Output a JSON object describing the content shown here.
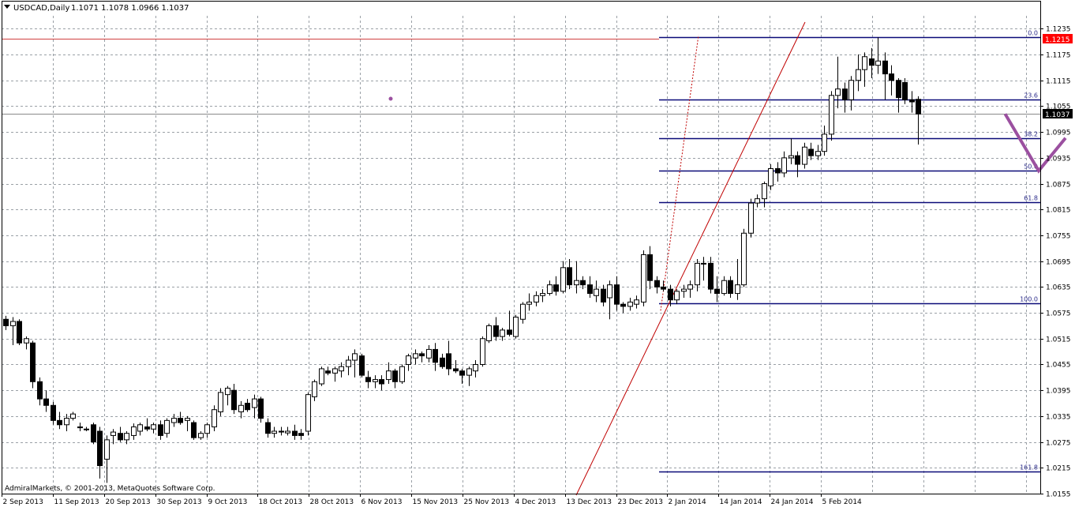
{
  "header": {
    "symbol": "USDCAD,Daily",
    "ohlc": "1.1071 1.1078 1.0966 1.1037"
  },
  "copyright": "AdmiralMarkets, © 2001-2013, MetaQuotes Software Corp.",
  "colors": {
    "background": "#ffffff",
    "axis": "#000000",
    "grid": "#9aa0a6",
    "fib_lines": "#0a0a78",
    "fib_labels": "#2b2b8a",
    "red_line": "#c00000",
    "horizontal_price_line": "#d04040",
    "price_label_red": "#ff0000",
    "price_label_current": "#000000",
    "projection": "#9b50a0",
    "bull_candle": "#ffffff",
    "bear_candle": "#000000"
  },
  "chart_data": {
    "type": "candlestick",
    "title": "USDCAD,Daily",
    "ylim": [
      1.0155,
      1.1265
    ],
    "y_ticks": [
      "1.1235",
      "1.1175",
      "1.1115",
      "1.1055",
      "1.0995",
      "1.0935",
      "1.0875",
      "1.0815",
      "1.0755",
      "1.0695",
      "1.0635",
      "1.0575",
      "1.0515",
      "1.0455",
      "1.0395",
      "1.0335",
      "1.0275",
      "1.0215",
      "1.0155"
    ],
    "x_ticks": [
      "2 Sep 2013",
      "11 Sep 2013",
      "20 Sep 2013",
      "30 Sep 2013",
      "9 Oct 2013",
      "18 Oct 2013",
      "28 Oct 2013",
      "6 Nov 2013",
      "15 Nov 2013",
      "25 Nov 2013",
      "4 Dec 2013",
      "13 Dec 2013",
      "23 Dec 2013",
      "2 Jan 2014",
      "14 Jan 2014",
      "24 Jan 2014",
      "5 Feb 2014"
    ],
    "grid": true,
    "price_labels": [
      {
        "label": "1.1215",
        "value": 1.1215,
        "style": "red"
      },
      {
        "label": "1.1037",
        "value": 1.1037,
        "style": "current"
      }
    ],
    "fibonacci_levels": [
      {
        "label": "0.0",
        "value": 1.1215
      },
      {
        "label": "23.6",
        "value": 1.1071
      },
      {
        "label": "38.2",
        "value": 1.0981
      },
      {
        "label": "50.0",
        "value": 1.0905
      },
      {
        "label": "61.8",
        "value": 1.0832
      },
      {
        "label": "100.0",
        "value": 1.0597
      },
      {
        "label": "161.8",
        "value": 1.0207
      }
    ],
    "candles": [
      {
        "o": 1.056,
        "h": 1.0568,
        "l": 1.0535,
        "c": 1.0545
      },
      {
        "o": 1.0545,
        "h": 1.0565,
        "l": 1.05,
        "c": 1.0555
      },
      {
        "o": 1.0555,
        "h": 1.056,
        "l": 1.05,
        "c": 1.0505
      },
      {
        "o": 1.0505,
        "h": 1.052,
        "l": 1.049,
        "c": 1.0515
      },
      {
        "o": 1.0505,
        "h": 1.051,
        "l": 1.04,
        "c": 1.0415
      },
      {
        "o": 1.0415,
        "h": 1.0425,
        "l": 1.036,
        "c": 1.0375
      },
      {
        "o": 1.0375,
        "h": 1.0395,
        "l": 1.0345,
        "c": 1.036
      },
      {
        "o": 1.036,
        "h": 1.0368,
        "l": 1.0315,
        "c": 1.0325
      },
      {
        "o": 1.0325,
        "h": 1.0345,
        "l": 1.0305,
        "c": 1.0315
      },
      {
        "o": 1.0315,
        "h": 1.034,
        "l": 1.03,
        "c": 1.033
      },
      {
        "o": 1.033,
        "h": 1.0345,
        "l": 1.0325,
        "c": 1.034
      },
      {
        "o": 1.031,
        "h": 1.032,
        "l": 1.03,
        "c": 1.0308
      },
      {
        "o": 1.0305,
        "h": 1.031,
        "l": 1.03,
        "c": 1.0305
      },
      {
        "o": 1.0315,
        "h": 1.032,
        "l": 1.027,
        "c": 1.0275
      },
      {
        "o": 1.03,
        "h": 1.031,
        "l": 1.019,
        "c": 1.022
      },
      {
        "o": 1.0235,
        "h": 1.029,
        "l": 1.018,
        "c": 1.028
      },
      {
        "o": 1.029,
        "h": 1.0305,
        "l": 1.027,
        "c": 1.0298
      },
      {
        "o": 1.0295,
        "h": 1.031,
        "l": 1.0275,
        "c": 1.028
      },
      {
        "o": 1.028,
        "h": 1.03,
        "l": 1.027,
        "c": 1.0295
      },
      {
        "o": 1.029,
        "h": 1.0318,
        "l": 1.028,
        "c": 1.031
      },
      {
        "o": 1.03,
        "h": 1.032,
        "l": 1.029,
        "c": 1.0315
      },
      {
        "o": 1.031,
        "h": 1.033,
        "l": 1.03,
        "c": 1.0305
      },
      {
        "o": 1.0305,
        "h": 1.032,
        "l": 1.0295,
        "c": 1.0315
      },
      {
        "o": 1.0315,
        "h": 1.0325,
        "l": 1.028,
        "c": 1.029
      },
      {
        "o": 1.0295,
        "h": 1.033,
        "l": 1.0285,
        "c": 1.0325
      },
      {
        "o": 1.032,
        "h": 1.034,
        "l": 1.031,
        "c": 1.033
      },
      {
        "o": 1.033,
        "h": 1.0345,
        "l": 1.0315,
        "c": 1.032
      },
      {
        "o": 1.0325,
        "h": 1.0335,
        "l": 1.03,
        "c": 1.033
      },
      {
        "o": 1.032,
        "h": 1.0325,
        "l": 1.028,
        "c": 1.0285
      },
      {
        "o": 1.0285,
        "h": 1.03,
        "l": 1.028,
        "c": 1.0295
      },
      {
        "o": 1.0295,
        "h": 1.032,
        "l": 1.0285,
        "c": 1.0315
      },
      {
        "o": 1.031,
        "h": 1.036,
        "l": 1.03,
        "c": 1.035
      },
      {
        "o": 1.0345,
        "h": 1.04,
        "l": 1.0335,
        "c": 1.039
      },
      {
        "o": 1.0385,
        "h": 1.0405,
        "l": 1.036,
        "c": 1.04
      },
      {
        "o": 1.0395,
        "h": 1.041,
        "l": 1.034,
        "c": 1.035
      },
      {
        "o": 1.0345,
        "h": 1.037,
        "l": 1.033,
        "c": 1.036
      },
      {
        "o": 1.0365,
        "h": 1.0375,
        "l": 1.0345,
        "c": 1.035
      },
      {
        "o": 1.0355,
        "h": 1.0385,
        "l": 1.033,
        "c": 1.0375
      },
      {
        "o": 1.0375,
        "h": 1.038,
        "l": 1.032,
        "c": 1.033
      },
      {
        "o": 1.032,
        "h": 1.033,
        "l": 1.0285,
        "c": 1.0295
      },
      {
        "o": 1.0295,
        "h": 1.031,
        "l": 1.0285,
        "c": 1.03
      },
      {
        "o": 1.03,
        "h": 1.031,
        "l": 1.029,
        "c": 1.0298
      },
      {
        "o": 1.0296,
        "h": 1.031,
        "l": 1.029,
        "c": 1.03
      },
      {
        "o": 1.03,
        "h": 1.0315,
        "l": 1.028,
        "c": 1.029
      },
      {
        "o": 1.0295,
        "h": 1.0305,
        "l": 1.028,
        "c": 1.029
      },
      {
        "o": 1.03,
        "h": 1.039,
        "l": 1.029,
        "c": 1.0385
      },
      {
        "o": 1.038,
        "h": 1.042,
        "l": 1.037,
        "c": 1.0415
      },
      {
        "o": 1.041,
        "h": 1.045,
        "l": 1.0405,
        "c": 1.0445
      },
      {
        "o": 1.044,
        "h": 1.045,
        "l": 1.043,
        "c": 1.0435
      },
      {
        "o": 1.0435,
        "h": 1.045,
        "l": 1.0415,
        "c": 1.0445
      },
      {
        "o": 1.044,
        "h": 1.046,
        "l": 1.0425,
        "c": 1.045
      },
      {
        "o": 1.045,
        "h": 1.0475,
        "l": 1.043,
        "c": 1.0465
      },
      {
        "o": 1.0465,
        "h": 1.049,
        "l": 1.0425,
        "c": 1.048
      },
      {
        "o": 1.0475,
        "h": 1.048,
        "l": 1.0425,
        "c": 1.043
      },
      {
        "o": 1.0425,
        "h": 1.044,
        "l": 1.04,
        "c": 1.0415
      },
      {
        "o": 1.0415,
        "h": 1.043,
        "l": 1.04,
        "c": 1.042
      },
      {
        "o": 1.042,
        "h": 1.043,
        "l": 1.0395,
        "c": 1.041
      },
      {
        "o": 1.042,
        "h": 1.046,
        "l": 1.041,
        "c": 1.044
      },
      {
        "o": 1.044,
        "h": 1.0445,
        "l": 1.04,
        "c": 1.0415
      },
      {
        "o": 1.0415,
        "h": 1.0455,
        "l": 1.041,
        "c": 1.045
      },
      {
        "o": 1.0455,
        "h": 1.048,
        "l": 1.044,
        "c": 1.0475
      },
      {
        "o": 1.047,
        "h": 1.049,
        "l": 1.0455,
        "c": 1.048
      },
      {
        "o": 1.048,
        "h": 1.0485,
        "l": 1.046,
        "c": 1.0475
      },
      {
        "o": 1.047,
        "h": 1.05,
        "l": 1.046,
        "c": 1.049
      },
      {
        "o": 1.049,
        "h": 1.0505,
        "l": 1.044,
        "c": 1.046
      },
      {
        "o": 1.047,
        "h": 1.048,
        "l": 1.0445,
        "c": 1.045
      },
      {
        "o": 1.048,
        "h": 1.051,
        "l": 1.043,
        "c": 1.0445
      },
      {
        "o": 1.0445,
        "h": 1.0465,
        "l": 1.0435,
        "c": 1.044
      },
      {
        "o": 1.044,
        "h": 1.0445,
        "l": 1.041,
        "c": 1.043
      },
      {
        "o": 1.043,
        "h": 1.045,
        "l": 1.0405,
        "c": 1.0445
      },
      {
        "o": 1.044,
        "h": 1.0465,
        "l": 1.0425,
        "c": 1.0455
      },
      {
        "o": 1.0455,
        "h": 1.052,
        "l": 1.045,
        "c": 1.0515
      },
      {
        "o": 1.051,
        "h": 1.055,
        "l": 1.0505,
        "c": 1.0545
      },
      {
        "o": 1.0545,
        "h": 1.0565,
        "l": 1.051,
        "c": 1.052
      },
      {
        "o": 1.052,
        "h": 1.054,
        "l": 1.051,
        "c": 1.0535
      },
      {
        "o": 1.0535,
        "h": 1.058,
        "l": 1.052,
        "c": 1.0525
      },
      {
        "o": 1.052,
        "h": 1.057,
        "l": 1.0515,
        "c": 1.0565
      },
      {
        "o": 1.056,
        "h": 1.06,
        "l": 1.055,
        "c": 1.0595
      },
      {
        "o": 1.0595,
        "h": 1.062,
        "l": 1.058,
        "c": 1.06
      },
      {
        "o": 1.06,
        "h": 1.0625,
        "l": 1.059,
        "c": 1.0615
      },
      {
        "o": 1.0615,
        "h": 1.063,
        "l": 1.06,
        "c": 1.062
      },
      {
        "o": 1.062,
        "h": 1.065,
        "l": 1.0615,
        "c": 1.064
      },
      {
        "o": 1.064,
        "h": 1.066,
        "l": 1.0615,
        "c": 1.0625
      },
      {
        "o": 1.0625,
        "h": 1.0695,
        "l": 1.062,
        "c": 1.068
      },
      {
        "o": 1.068,
        "h": 1.07,
        "l": 1.063,
        "c": 1.064
      },
      {
        "o": 1.064,
        "h": 1.0695,
        "l": 1.062,
        "c": 1.065
      },
      {
        "o": 1.065,
        "h": 1.066,
        "l": 1.063,
        "c": 1.064
      },
      {
        "o": 1.064,
        "h": 1.066,
        "l": 1.061,
        "c": 1.062
      },
      {
        "o": 1.0615,
        "h": 1.065,
        "l": 1.06,
        "c": 1.063
      },
      {
        "o": 1.063,
        "h": 1.064,
        "l": 1.059,
        "c": 1.06
      },
      {
        "o": 1.061,
        "h": 1.065,
        "l": 1.056,
        "c": 1.064
      },
      {
        "o": 1.064,
        "h": 1.066,
        "l": 1.058,
        "c": 1.0595
      },
      {
        "o": 1.0595,
        "h": 1.06,
        "l": 1.0575,
        "c": 1.059
      },
      {
        "o": 1.059,
        "h": 1.061,
        "l": 1.058,
        "c": 1.06
      },
      {
        "o": 1.0595,
        "h": 1.0615,
        "l": 1.0585,
        "c": 1.0605
      },
      {
        "o": 1.06,
        "h": 1.072,
        "l": 1.059,
        "c": 1.071
      },
      {
        "o": 1.071,
        "h": 1.073,
        "l": 1.063,
        "c": 1.065
      },
      {
        "o": 1.065,
        "h": 1.066,
        "l": 1.062,
        "c": 1.0635
      },
      {
        "o": 1.0635,
        "h": 1.065,
        "l": 1.0625,
        "c": 1.063
      },
      {
        "o": 1.063,
        "h": 1.064,
        "l": 1.059,
        "c": 1.0605
      },
      {
        "o": 1.0605,
        "h": 1.063,
        "l": 1.0595,
        "c": 1.0625
      },
      {
        "o": 1.0625,
        "h": 1.064,
        "l": 1.061,
        "c": 1.063
      },
      {
        "o": 1.063,
        "h": 1.065,
        "l": 1.061,
        "c": 1.064
      },
      {
        "o": 1.064,
        "h": 1.07,
        "l": 1.0625,
        "c": 1.069
      },
      {
        "o": 1.069,
        "h": 1.0705,
        "l": 1.065,
        "c": 1.069
      },
      {
        "o": 1.069,
        "h": 1.0705,
        "l": 1.062,
        "c": 1.063
      },
      {
        "o": 1.063,
        "h": 1.066,
        "l": 1.06,
        "c": 1.062
      },
      {
        "o": 1.062,
        "h": 1.066,
        "l": 1.0615,
        "c": 1.065
      },
      {
        "o": 1.065,
        "h": 1.066,
        "l": 1.061,
        "c": 1.062
      },
      {
        "o": 1.062,
        "h": 1.07,
        "l": 1.0605,
        "c": 1.064
      },
      {
        "o": 1.064,
        "h": 1.077,
        "l": 1.0635,
        "c": 1.076
      },
      {
        "o": 1.076,
        "h": 1.084,
        "l": 1.075,
        "c": 1.083
      },
      {
        "o": 1.083,
        "h": 1.085,
        "l": 1.082,
        "c": 1.084
      },
      {
        "o": 1.084,
        "h": 1.088,
        "l": 1.082,
        "c": 1.0875
      },
      {
        "o": 1.087,
        "h": 1.092,
        "l": 1.086,
        "c": 1.091
      },
      {
        "o": 1.091,
        "h": 1.0925,
        "l": 1.088,
        "c": 1.09
      },
      {
        "o": 1.09,
        "h": 1.095,
        "l": 1.089,
        "c": 1.0935
      },
      {
        "o": 1.0935,
        "h": 1.098,
        "l": 1.092,
        "c": 1.094
      },
      {
        "o": 1.094,
        "h": 1.095,
        "l": 1.089,
        "c": 1.092
      },
      {
        "o": 1.092,
        "h": 1.097,
        "l": 1.091,
        "c": 1.096
      },
      {
        "o": 1.0955,
        "h": 1.097,
        "l": 1.093,
        "c": 1.094
      },
      {
        "o": 1.094,
        "h": 1.0965,
        "l": 1.093,
        "c": 1.095
      },
      {
        "o": 1.095,
        "h": 1.101,
        "l": 1.094,
        "c": 1.099
      },
      {
        "o": 1.099,
        "h": 1.109,
        "l": 1.0975,
        "c": 1.108
      },
      {
        "o": 1.108,
        "h": 1.117,
        "l": 1.105,
        "c": 1.1095
      },
      {
        "o": 1.1095,
        "h": 1.111,
        "l": 1.104,
        "c": 1.107
      },
      {
        "o": 1.107,
        "h": 1.1125,
        "l": 1.1045,
        "c": 1.1115
      },
      {
        "o": 1.1115,
        "h": 1.1175,
        "l": 1.109,
        "c": 1.114
      },
      {
        "o": 1.114,
        "h": 1.118,
        "l": 1.11,
        "c": 1.117
      },
      {
        "o": 1.1165,
        "h": 1.119,
        "l": 1.112,
        "c": 1.115
      },
      {
        "o": 1.115,
        "h": 1.1215,
        "l": 1.113,
        "c": 1.116
      },
      {
        "o": 1.116,
        "h": 1.118,
        "l": 1.107,
        "c": 1.113
      },
      {
        "o": 1.113,
        "h": 1.115,
        "l": 1.108,
        "c": 1.1115
      },
      {
        "o": 1.1115,
        "h": 1.112,
        "l": 1.104,
        "c": 1.1075
      },
      {
        "o": 1.111,
        "h": 1.112,
        "l": 1.106,
        "c": 1.107
      },
      {
        "o": 1.107,
        "h": 1.109,
        "l": 1.104,
        "c": 1.1065
      },
      {
        "o": 1.1071,
        "h": 1.1078,
        "l": 1.0966,
        "c": 1.1037
      }
    ],
    "drawings": [
      {
        "type": "trendline",
        "from": {
          "bar": 119,
          "price": 1.0585
        },
        "to": {
          "bar": 162,
          "price": 1.124
        },
        "note": "solid red, extended"
      },
      {
        "type": "trendline",
        "from": {
          "bar": 119,
          "price": 1.0595
        },
        "to": {
          "bar": 130,
          "price": 1.122
        },
        "note": "dotted red"
      },
      {
        "type": "projection",
        "points": [
          {
            "bar": 149,
            "price": 1.1037
          },
          {
            "bar": 154,
            "price": 1.0905
          },
          {
            "bar": 158,
            "price": 1.0981
          }
        ],
        "note": "purple zigzag"
      }
    ]
  }
}
